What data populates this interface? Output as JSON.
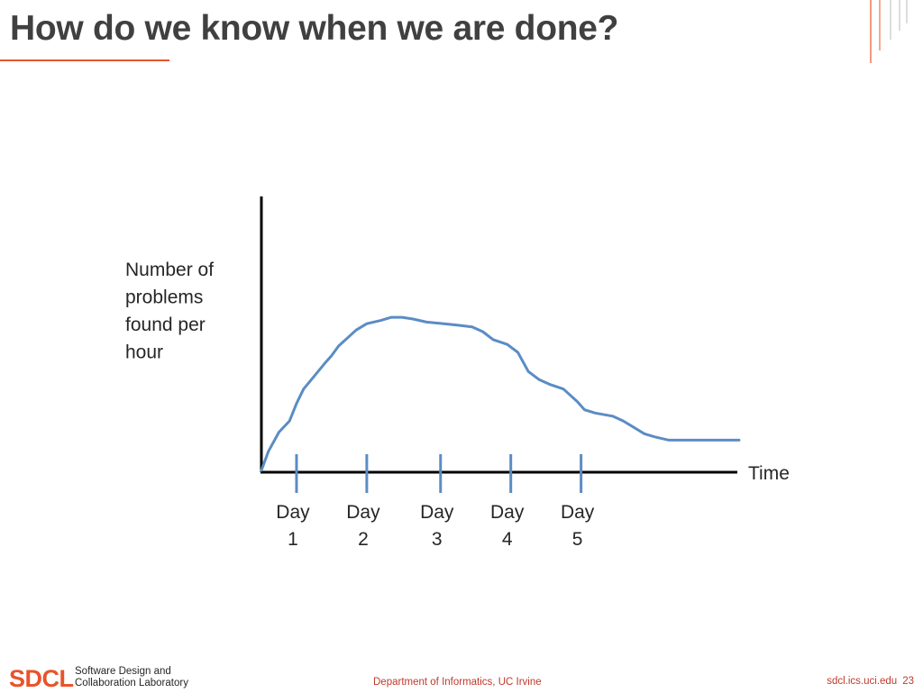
{
  "slide": {
    "title": "How do we know when we are done?"
  },
  "colors": {
    "accent": "#e8542a",
    "curve": "#5b8cc4",
    "axis": "#000000",
    "footer_text": "#c0392b"
  },
  "chart_data": {
    "type": "line",
    "title": "",
    "xlabel": "Time",
    "ylabel_lines": [
      "Number of",
      "problems",
      "found per",
      "hour"
    ],
    "xlim": [
      0,
      6.8
    ],
    "ylim": [
      0,
      100
    ],
    "grid": false,
    "tick_positions": [
      0.5,
      1.5,
      2.55,
      3.55,
      4.55
    ],
    "tick_labels": [
      {
        "top": "Day",
        "bottom": "1"
      },
      {
        "top": "Day",
        "bottom": "2"
      },
      {
        "top": "Day",
        "bottom": "3"
      },
      {
        "top": "Day",
        "bottom": "4"
      },
      {
        "top": "Day",
        "bottom": "5"
      }
    ],
    "series": [
      {
        "values_x": [
          0.0,
          0.1,
          0.25,
          0.4,
          0.5,
          0.6,
          0.75,
          0.9,
          1.0,
          1.1,
          1.25,
          1.35,
          1.5,
          1.7,
          1.85,
          2.0,
          2.15,
          2.35,
          2.6,
          2.8,
          3.0,
          3.15,
          3.3,
          3.5,
          3.65,
          3.8,
          3.95,
          4.1,
          4.3,
          4.5,
          4.6,
          4.75,
          5.0,
          5.15,
          5.3,
          5.45,
          5.6,
          5.8,
          6.0,
          6.2,
          6.4,
          6.6,
          6.8
        ],
        "values_y": [
          0,
          12,
          24,
          31,
          42,
          51,
          59,
          67,
          72,
          78,
          84,
          88,
          92,
          94,
          96,
          96,
          95,
          93,
          92,
          91,
          90,
          87,
          82,
          79,
          74,
          62,
          57,
          54,
          51,
          43,
          38,
          36,
          34,
          31,
          27,
          23,
          21,
          19,
          19,
          19,
          19,
          19,
          19
        ]
      }
    ]
  },
  "footer": {
    "logo": "SDCL",
    "lab_line1": "Software Design and",
    "lab_line2": "Collaboration Laboratory",
    "department": "Department of Informatics, UC Irvine",
    "url": "sdcl.ics.uci.edu",
    "page": "23"
  }
}
